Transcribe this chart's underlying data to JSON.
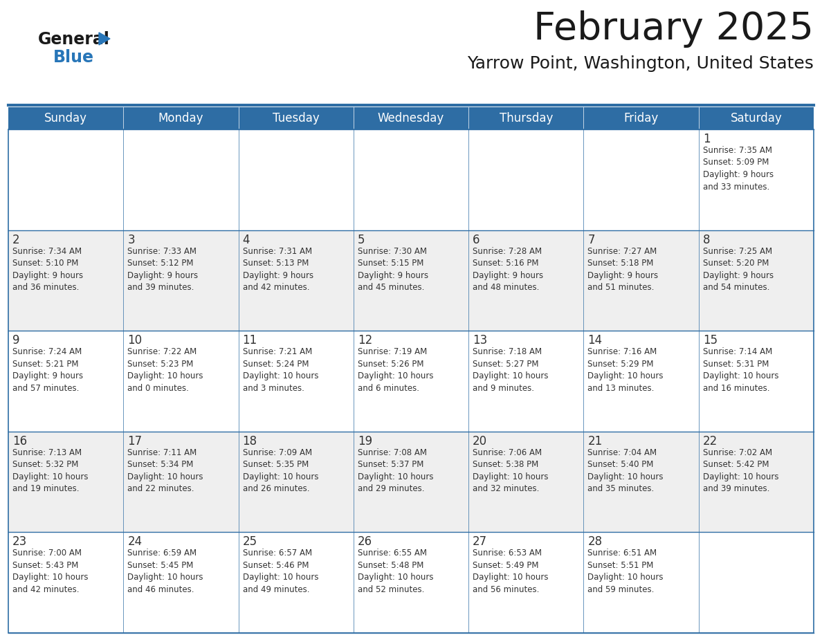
{
  "title": "February 2025",
  "subtitle": "Yarrow Point, Washington, United States",
  "days_of_week": [
    "Sunday",
    "Monday",
    "Tuesday",
    "Wednesday",
    "Thursday",
    "Friday",
    "Saturday"
  ],
  "header_bg": "#2E6DA4",
  "header_text": "#FFFFFF",
  "cell_bg_light": "#F0F0F0",
  "cell_bg_white": "#FFFFFF",
  "cell_border": "#2E6DA4",
  "day_num_color": "#333333",
  "info_text_color": "#333333",
  "title_color": "#1a1a1a",
  "subtitle_color": "#1a1a1a",
  "logo_general_color": "#1a1a1a",
  "logo_blue_color": "#2876B8",
  "weeks": [
    {
      "days": [
        {
          "date": null,
          "info": null
        },
        {
          "date": null,
          "info": null
        },
        {
          "date": null,
          "info": null
        },
        {
          "date": null,
          "info": null
        },
        {
          "date": null,
          "info": null
        },
        {
          "date": null,
          "info": null
        },
        {
          "date": 1,
          "info": "Sunrise: 7:35 AM\nSunset: 5:09 PM\nDaylight: 9 hours\nand 33 minutes."
        }
      ]
    },
    {
      "days": [
        {
          "date": 2,
          "info": "Sunrise: 7:34 AM\nSunset: 5:10 PM\nDaylight: 9 hours\nand 36 minutes."
        },
        {
          "date": 3,
          "info": "Sunrise: 7:33 AM\nSunset: 5:12 PM\nDaylight: 9 hours\nand 39 minutes."
        },
        {
          "date": 4,
          "info": "Sunrise: 7:31 AM\nSunset: 5:13 PM\nDaylight: 9 hours\nand 42 minutes."
        },
        {
          "date": 5,
          "info": "Sunrise: 7:30 AM\nSunset: 5:15 PM\nDaylight: 9 hours\nand 45 minutes."
        },
        {
          "date": 6,
          "info": "Sunrise: 7:28 AM\nSunset: 5:16 PM\nDaylight: 9 hours\nand 48 minutes."
        },
        {
          "date": 7,
          "info": "Sunrise: 7:27 AM\nSunset: 5:18 PM\nDaylight: 9 hours\nand 51 minutes."
        },
        {
          "date": 8,
          "info": "Sunrise: 7:25 AM\nSunset: 5:20 PM\nDaylight: 9 hours\nand 54 minutes."
        }
      ]
    },
    {
      "days": [
        {
          "date": 9,
          "info": "Sunrise: 7:24 AM\nSunset: 5:21 PM\nDaylight: 9 hours\nand 57 minutes."
        },
        {
          "date": 10,
          "info": "Sunrise: 7:22 AM\nSunset: 5:23 PM\nDaylight: 10 hours\nand 0 minutes."
        },
        {
          "date": 11,
          "info": "Sunrise: 7:21 AM\nSunset: 5:24 PM\nDaylight: 10 hours\nand 3 minutes."
        },
        {
          "date": 12,
          "info": "Sunrise: 7:19 AM\nSunset: 5:26 PM\nDaylight: 10 hours\nand 6 minutes."
        },
        {
          "date": 13,
          "info": "Sunrise: 7:18 AM\nSunset: 5:27 PM\nDaylight: 10 hours\nand 9 minutes."
        },
        {
          "date": 14,
          "info": "Sunrise: 7:16 AM\nSunset: 5:29 PM\nDaylight: 10 hours\nand 13 minutes."
        },
        {
          "date": 15,
          "info": "Sunrise: 7:14 AM\nSunset: 5:31 PM\nDaylight: 10 hours\nand 16 minutes."
        }
      ]
    },
    {
      "days": [
        {
          "date": 16,
          "info": "Sunrise: 7:13 AM\nSunset: 5:32 PM\nDaylight: 10 hours\nand 19 minutes."
        },
        {
          "date": 17,
          "info": "Sunrise: 7:11 AM\nSunset: 5:34 PM\nDaylight: 10 hours\nand 22 minutes."
        },
        {
          "date": 18,
          "info": "Sunrise: 7:09 AM\nSunset: 5:35 PM\nDaylight: 10 hours\nand 26 minutes."
        },
        {
          "date": 19,
          "info": "Sunrise: 7:08 AM\nSunset: 5:37 PM\nDaylight: 10 hours\nand 29 minutes."
        },
        {
          "date": 20,
          "info": "Sunrise: 7:06 AM\nSunset: 5:38 PM\nDaylight: 10 hours\nand 32 minutes."
        },
        {
          "date": 21,
          "info": "Sunrise: 7:04 AM\nSunset: 5:40 PM\nDaylight: 10 hours\nand 35 minutes."
        },
        {
          "date": 22,
          "info": "Sunrise: 7:02 AM\nSunset: 5:42 PM\nDaylight: 10 hours\nand 39 minutes."
        }
      ]
    },
    {
      "days": [
        {
          "date": 23,
          "info": "Sunrise: 7:00 AM\nSunset: 5:43 PM\nDaylight: 10 hours\nand 42 minutes."
        },
        {
          "date": 24,
          "info": "Sunrise: 6:59 AM\nSunset: 5:45 PM\nDaylight: 10 hours\nand 46 minutes."
        },
        {
          "date": 25,
          "info": "Sunrise: 6:57 AM\nSunset: 5:46 PM\nDaylight: 10 hours\nand 49 minutes."
        },
        {
          "date": 26,
          "info": "Sunrise: 6:55 AM\nSunset: 5:48 PM\nDaylight: 10 hours\nand 52 minutes."
        },
        {
          "date": 27,
          "info": "Sunrise: 6:53 AM\nSunset: 5:49 PM\nDaylight: 10 hours\nand 56 minutes."
        },
        {
          "date": 28,
          "info": "Sunrise: 6:51 AM\nSunset: 5:51 PM\nDaylight: 10 hours\nand 59 minutes."
        },
        {
          "date": null,
          "info": null
        }
      ]
    }
  ],
  "week_bg_colors": [
    "#FFFFFF",
    "#EFEFEF",
    "#FFFFFF",
    "#EFEFEF",
    "#FFFFFF"
  ],
  "figw": 11.88,
  "figh": 9.18,
  "dpi": 100
}
